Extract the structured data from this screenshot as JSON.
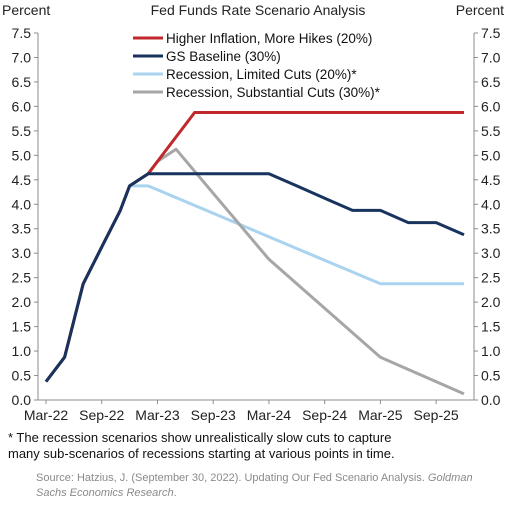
{
  "chart_data": {
    "type": "line",
    "title": "Fed Funds Rate Scenario Analysis",
    "ylabel_left": "Percent",
    "ylabel_right": "Percent",
    "ylim": [
      0.0,
      7.5
    ],
    "yticks": [
      "0.0",
      "0.5",
      "1.0",
      "1.5",
      "2.0",
      "2.5",
      "3.0",
      "3.5",
      "4.0",
      "4.5",
      "5.0",
      "5.5",
      "6.0",
      "6.5",
      "7.0",
      "7.5"
    ],
    "xticks": [
      "Mar-22",
      "Sep-22",
      "Mar-23",
      "Sep-23",
      "Mar-24",
      "Sep-24",
      "Mar-25",
      "Sep-25"
    ],
    "x_range": [
      "2022-03",
      "2025-12"
    ],
    "grid": false,
    "legend_position": "top",
    "series": [
      {
        "name": "Higher Inflation, More Hikes (20%)",
        "color": "#c0282c",
        "points": [
          [
            "2022-03",
            0.375
          ],
          [
            "2022-05",
            0.875
          ],
          [
            "2022-06",
            1.625
          ],
          [
            "2022-07",
            2.375
          ],
          [
            "2022-09",
            3.125
          ],
          [
            "2022-11",
            3.875
          ],
          [
            "2022-12",
            4.375
          ],
          [
            "2023-02",
            4.625
          ],
          [
            "2023-03",
            4.875
          ],
          [
            "2023-05",
            5.375
          ],
          [
            "2023-06",
            5.625
          ],
          [
            "2023-07",
            5.875
          ],
          [
            "2025-12",
            5.875
          ]
        ]
      },
      {
        "name": "GS Baseline (30%)",
        "color": "#17335e",
        "points": [
          [
            "2022-03",
            0.375
          ],
          [
            "2022-05",
            0.875
          ],
          [
            "2022-06",
            1.625
          ],
          [
            "2022-07",
            2.375
          ],
          [
            "2022-09",
            3.125
          ],
          [
            "2022-11",
            3.875
          ],
          [
            "2022-12",
            4.375
          ],
          [
            "2023-02",
            4.625
          ],
          [
            "2024-03",
            4.625
          ],
          [
            "2024-06",
            4.375
          ],
          [
            "2024-09",
            4.125
          ],
          [
            "2024-12",
            3.875
          ],
          [
            "2025-03",
            3.875
          ],
          [
            "2025-06",
            3.625
          ],
          [
            "2025-09",
            3.625
          ],
          [
            "2025-12",
            3.375
          ]
        ]
      },
      {
        "name": "Recession, Limited Cuts (20%)*",
        "color": "#a9d3ef",
        "points": [
          [
            "2022-03",
            0.375
          ],
          [
            "2022-05",
            0.875
          ],
          [
            "2022-06",
            1.625
          ],
          [
            "2022-07",
            2.375
          ],
          [
            "2022-09",
            3.125
          ],
          [
            "2022-11",
            3.875
          ],
          [
            "2022-12",
            4.375
          ],
          [
            "2023-02",
            4.375
          ],
          [
            "2025-03",
            2.375
          ],
          [
            "2025-12",
            2.375
          ]
        ]
      },
      {
        "name": "Recession, Substantial Cuts (30%)*",
        "color": "#a6a6a6",
        "points": [
          [
            "2022-03",
            0.375
          ],
          [
            "2022-05",
            0.875
          ],
          [
            "2022-06",
            1.625
          ],
          [
            "2022-07",
            2.375
          ],
          [
            "2022-09",
            3.125
          ],
          [
            "2022-11",
            3.875
          ],
          [
            "2022-12",
            4.375
          ],
          [
            "2023-02",
            4.625
          ],
          [
            "2023-03",
            4.875
          ],
          [
            "2023-05",
            5.125
          ],
          [
            "2024-03",
            2.875
          ],
          [
            "2025-03",
            0.875
          ],
          [
            "2025-12",
            0.125
          ]
        ]
      }
    ]
  },
  "footnote": "* The recession scenarios show unrealistically slow cuts to capture\nmany sub-scenarios of recessions starting at various points in time.",
  "source": {
    "prefix": "Source: Hatzius, J. (September 30, 2022). Updating Our Fed Scenario Analysis. ",
    "publication": "Goldman Sachs Economics Research",
    "suffix": "."
  }
}
